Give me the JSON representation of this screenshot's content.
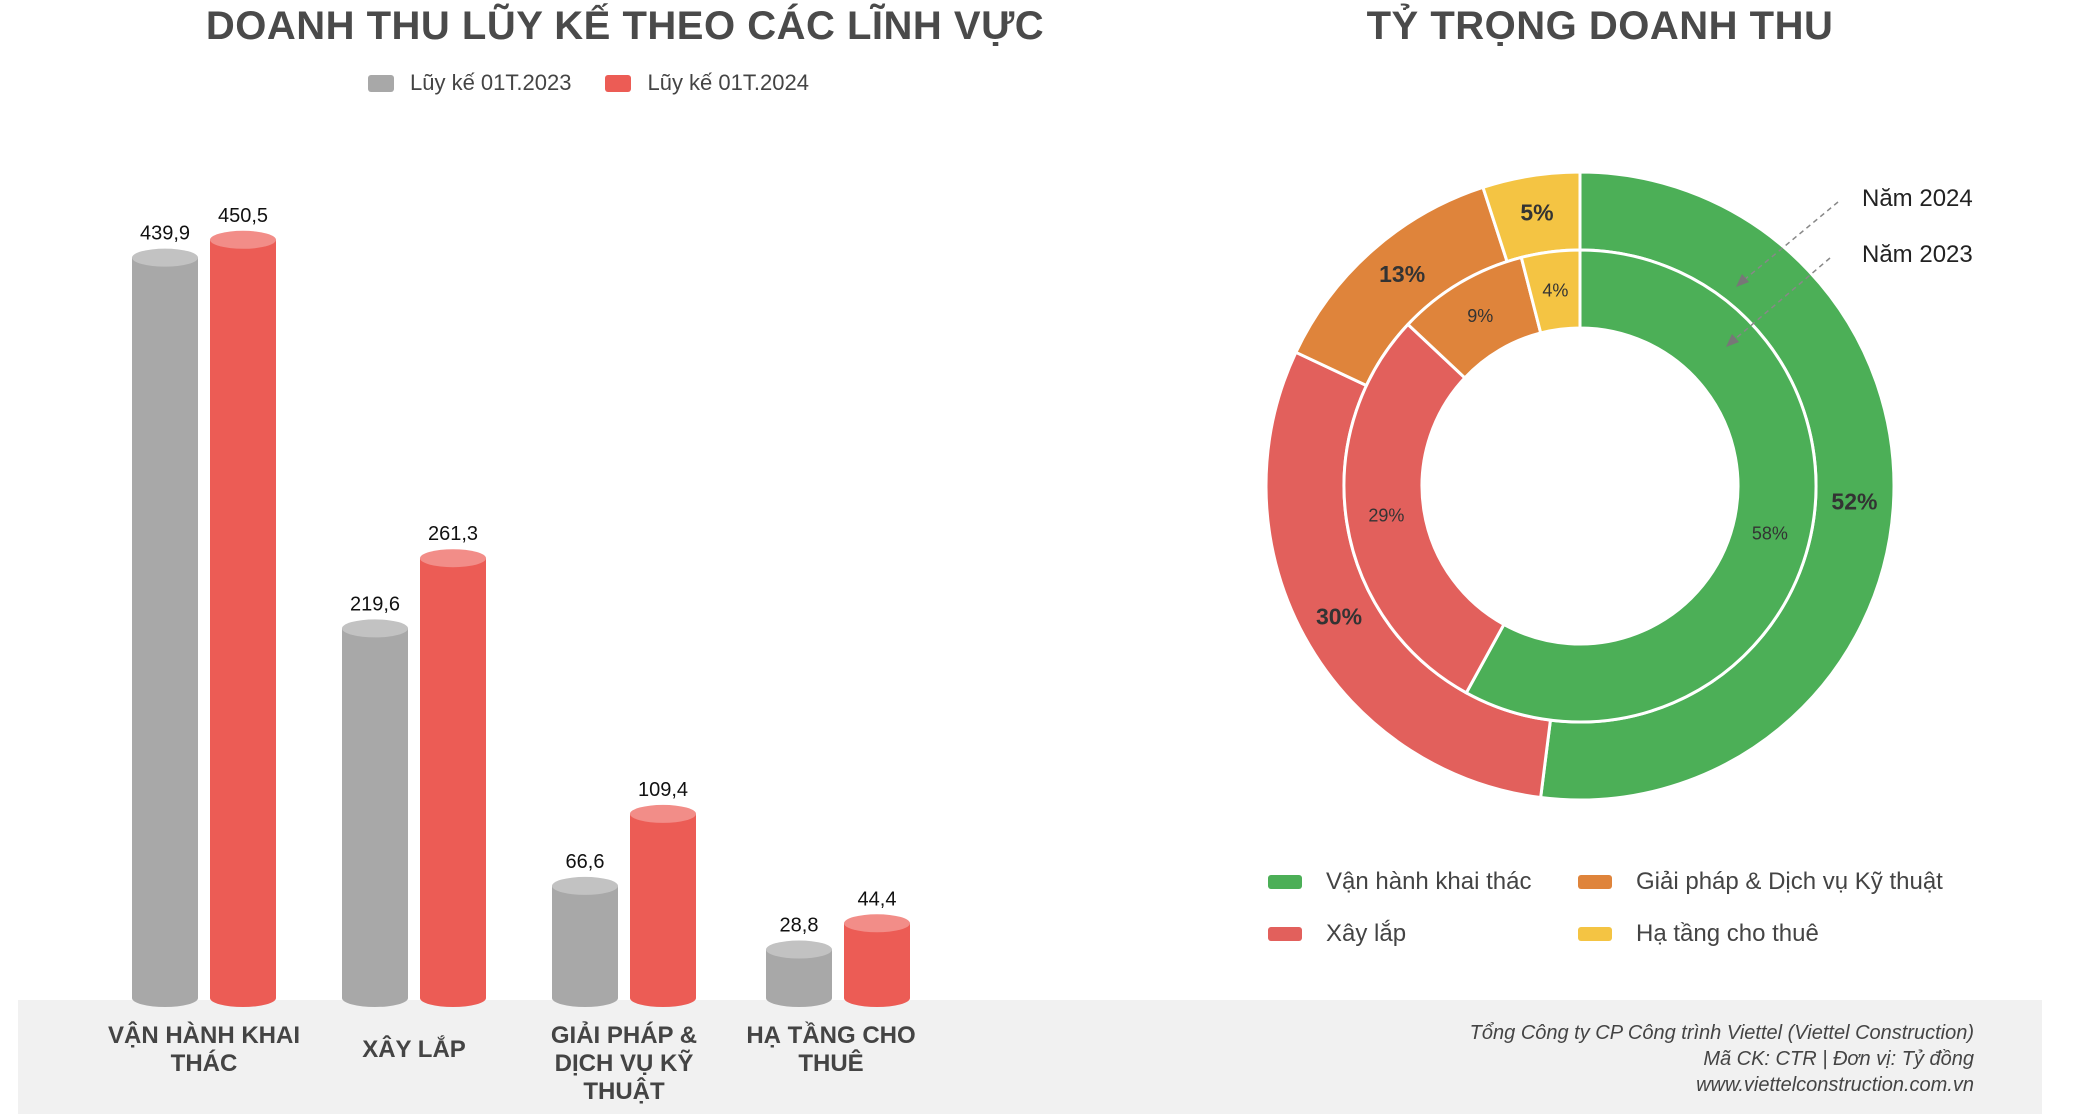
{
  "chart_data": [
    {
      "type": "bar",
      "title": "DOANH THU LŨY KẾ THEO CÁC LĨNH VỰC",
      "categories": [
        "VẬN HÀNH KHAI THÁC",
        "XÂY LẮP",
        "GIẢI PHÁP & DỊCH VỤ KỸ THUẬT",
        "HẠ TẦNG CHO THUÊ"
      ],
      "series": [
        {
          "name": "Lũy kế 01T.2023",
          "color": "#a8a8a8",
          "values": [
            439.9,
            219.6,
            66.6,
            28.8
          ],
          "labels": [
            "439,9",
            "219,6",
            "66,6",
            "28,8"
          ]
        },
        {
          "name": "Lũy kế 01T.2024",
          "color": "#ec5c55",
          "values": [
            450.5,
            261.3,
            109.4,
            44.4
          ],
          "labels": [
            "450,5",
            "261,3",
            "109,4",
            "44,4"
          ]
        }
      ],
      "legend": "top",
      "grid": false
    },
    {
      "type": "pie",
      "subtype": "double-donut",
      "title": "TỶ TRỌNG DOANH THU",
      "categories": [
        "Vận hành khai thác",
        "Xây lắp",
        "Giải pháp & Dịch vụ Kỹ thuật",
        "Hạ tầng cho thuê"
      ],
      "colors": [
        "#4caf57",
        "#e2605c",
        "#df843b",
        "#f4c443"
      ],
      "rings": [
        {
          "name": "Năm 2024",
          "position": "outer",
          "values": [
            52,
            30,
            13,
            5
          ],
          "labels": [
            "52%",
            "30%",
            "13%",
            "5%"
          ]
        },
        {
          "name": "Năm 2023",
          "position": "inner",
          "values": [
            58,
            29,
            9,
            4
          ],
          "labels": [
            "58%",
            "29%",
            "9%",
            "4%"
          ]
        }
      ],
      "legend": "bottom"
    }
  ],
  "footer": {
    "company": "Tổng Công ty CP Công trình Viettel (Viettel Construction)",
    "ticker_unit": "Mã CK: CTR  |  Đơn vị: Tỷ đồng",
    "website": "www.viettelconstruction.com.vn"
  }
}
